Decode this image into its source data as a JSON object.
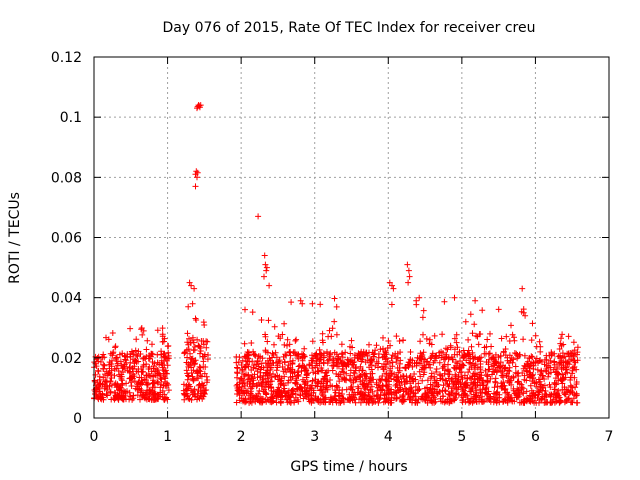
{
  "chart_data": {
    "type": "scatter",
    "title": "Day 076 of 2015, Rate Of TEC Index for receiver creu",
    "xlabel": "GPS time / hours",
    "ylabel": "ROTI / TECUs",
    "xlim": [
      0,
      7
    ],
    "ylim": [
      0,
      0.12
    ],
    "xticks": [
      0,
      1,
      2,
      3,
      4,
      5,
      6,
      7
    ],
    "xtick_labels": [
      "0",
      "1",
      "2",
      "3",
      "4",
      "5",
      "6",
      "7"
    ],
    "yticks": [
      0,
      0.02,
      0.04,
      0.06,
      0.08,
      0.1,
      0.12
    ],
    "ytick_labels": [
      "0",
      "0.02",
      "0.04",
      "0.06",
      "0.08",
      "0.1",
      "0.12"
    ],
    "grid": true,
    "marker": "+",
    "color": "#ff0000",
    "series": [
      {
        "name": "ROTI",
        "segments": [
          {
            "x_start": 0.0,
            "x_end": 1.02,
            "base_min": 0.006,
            "base_max": 0.022,
            "peak_max": 0.03
          },
          {
            "x_start": 1.22,
            "x_end": 1.55,
            "base_min": 0.006,
            "base_max": 0.026,
            "peak_max": 0.046
          },
          {
            "x_start": 1.93,
            "x_end": 6.58,
            "base_min": 0.005,
            "base_max": 0.022,
            "peak_max": 0.04
          }
        ],
        "highlight_points": [
          {
            "x": 1.4,
            "y": 0.103
          },
          {
            "x": 1.41,
            "y": 0.1035
          },
          {
            "x": 1.42,
            "y": 0.104
          },
          {
            "x": 1.43,
            "y": 0.1038
          },
          {
            "x": 1.44,
            "y": 0.1033
          },
          {
            "x": 1.45,
            "y": 0.104
          },
          {
            "x": 1.38,
            "y": 0.081
          },
          {
            "x": 1.39,
            "y": 0.082
          },
          {
            "x": 1.4,
            "y": 0.08
          },
          {
            "x": 1.41,
            "y": 0.0815
          },
          {
            "x": 1.38,
            "y": 0.077
          },
          {
            "x": 1.3,
            "y": 0.045
          },
          {
            "x": 1.32,
            "y": 0.044
          },
          {
            "x": 1.34,
            "y": 0.038
          },
          {
            "x": 1.36,
            "y": 0.043
          },
          {
            "x": 1.28,
            "y": 0.037
          },
          {
            "x": 2.23,
            "y": 0.067
          },
          {
            "x": 2.32,
            "y": 0.054
          },
          {
            "x": 2.33,
            "y": 0.051
          },
          {
            "x": 2.34,
            "y": 0.049
          },
          {
            "x": 2.31,
            "y": 0.047
          },
          {
            "x": 2.35,
            "y": 0.05
          },
          {
            "x": 2.38,
            "y": 0.044
          },
          {
            "x": 2.81,
            "y": 0.039
          },
          {
            "x": 2.83,
            "y": 0.038
          },
          {
            "x": 4.02,
            "y": 0.045
          },
          {
            "x": 4.05,
            "y": 0.044
          },
          {
            "x": 4.07,
            "y": 0.043
          },
          {
            "x": 4.26,
            "y": 0.051
          },
          {
            "x": 4.28,
            "y": 0.049
          },
          {
            "x": 4.29,
            "y": 0.047
          },
          {
            "x": 4.27,
            "y": 0.045
          },
          {
            "x": 4.38,
            "y": 0.039
          },
          {
            "x": 4.42,
            "y": 0.04
          },
          {
            "x": 4.9,
            "y": 0.04
          },
          {
            "x": 5.18,
            "y": 0.039
          },
          {
            "x": 5.82,
            "y": 0.043
          },
          {
            "x": 5.84,
            "y": 0.035
          },
          {
            "x": 5.86,
            "y": 0.034
          }
        ]
      }
    ]
  }
}
